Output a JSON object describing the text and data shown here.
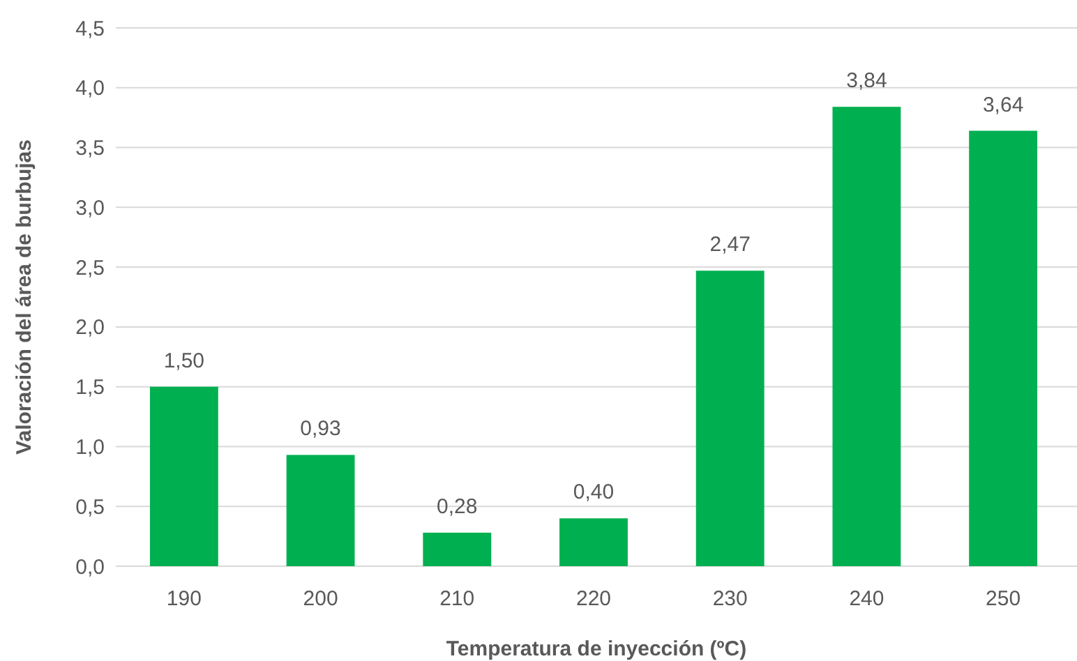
{
  "chart_data": {
    "type": "bar",
    "xlabel": "Temperatura de inyección (ºC)",
    "ylabel": "Valoración del área de burbujas",
    "categories": [
      "190",
      "200",
      "210",
      "220",
      "230",
      "240",
      "250"
    ],
    "values": [
      1.5,
      0.93,
      0.28,
      0.4,
      2.47,
      3.84,
      3.64
    ],
    "value_labels": [
      "1,50",
      "0,93",
      "0,28",
      "0,40",
      "2,47",
      "3,84",
      "3,64"
    ],
    "color": "#00b050",
    "ylim": [
      0,
      4.5
    ],
    "yticks": [
      {
        "value": 0,
        "label": "0,0"
      },
      {
        "value": 0.5,
        "label": "0,5"
      },
      {
        "value": 1,
        "label": "1,0"
      },
      {
        "value": 1.5,
        "label": "1,5"
      },
      {
        "value": 2,
        "label": "2,0"
      },
      {
        "value": 2.5,
        "label": "2,5"
      },
      {
        "value": 3,
        "label": "3,0"
      },
      {
        "value": 3.5,
        "label": "3,5"
      },
      {
        "value": 4,
        "label": "4,0"
      },
      {
        "value": 4.5,
        "label": "4,5"
      }
    ],
    "grid": "y"
  }
}
